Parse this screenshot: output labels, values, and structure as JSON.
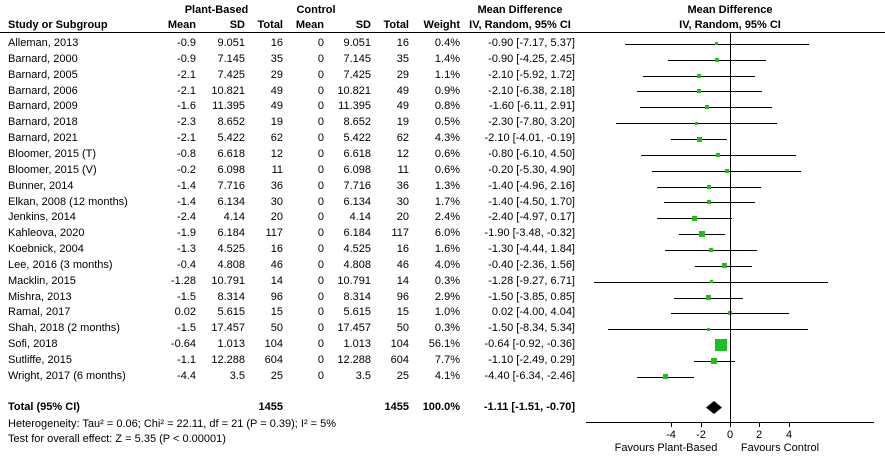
{
  "colors": {
    "marker_green": "#1fbe1f",
    "diamond_black": "#000000",
    "line_black": "#000000"
  },
  "header": {
    "study_col": "Study or Subgroup",
    "group_experimental": "Plant-Based",
    "group_control": "Control",
    "mean_label": "Mean",
    "sd_label": "SD",
    "total_label": "Total",
    "weight_label": "Weight",
    "effect_title": "Mean Difference",
    "effect_subtitle": "IV, Random, 95% CI"
  },
  "chart_data": {
    "type": "scatter",
    "subtype": "forest_plot",
    "title": "Mean Difference — IV, Random, 95% CI",
    "effect_measure": "Mean Difference",
    "method": "IV, Random, 95% CI",
    "xlim": [
      -10,
      10
    ],
    "x_ticks": [
      "-4",
      "-2",
      "0",
      "2",
      "4"
    ],
    "x_tick_values": [
      -4,
      -2,
      0,
      2,
      4
    ],
    "favours_left": "Favours Plant-Based",
    "favours_right": "Favours Control",
    "studies": [
      {
        "name": "Alleman, 2013",
        "m1": "-0.9",
        "sd1": "9.051",
        "t1": "16",
        "m2": "0",
        "sd2": "9.051",
        "t2": "16",
        "w": "0.4%",
        "ci": "-0.90 [-7.17, 5.37]",
        "md": -0.9,
        "lo": -7.17,
        "hi": 5.37
      },
      {
        "name": "Barnard, 2000",
        "m1": "-0.9",
        "sd1": "7.145",
        "t1": "35",
        "m2": "0",
        "sd2": "7.145",
        "t2": "35",
        "w": "1.4%",
        "ci": "-0.90 [-4.25, 2.45]",
        "md": -0.9,
        "lo": -4.25,
        "hi": 2.45
      },
      {
        "name": "Barnard, 2005",
        "m1": "-2.1",
        "sd1": "7.425",
        "t1": "29",
        "m2": "0",
        "sd2": "7.425",
        "t2": "29",
        "w": "1.1%",
        "ci": "-2.10 [-5.92, 1.72]",
        "md": -2.1,
        "lo": -5.92,
        "hi": 1.72
      },
      {
        "name": "Barnard, 2006",
        "m1": "-2.1",
        "sd1": "10.821",
        "t1": "49",
        "m2": "0",
        "sd2": "10.821",
        "t2": "49",
        "w": "0.9%",
        "ci": "-2.10 [-6.38, 2.18]",
        "md": -2.1,
        "lo": -6.38,
        "hi": 2.18
      },
      {
        "name": "Barnard, 2009",
        "m1": "-1.6",
        "sd1": "11.395",
        "t1": "49",
        "m2": "0",
        "sd2": "11.395",
        "t2": "49",
        "w": "0.8%",
        "ci": "-1.60 [-6.11, 2.91]",
        "md": -1.6,
        "lo": -6.11,
        "hi": 2.91
      },
      {
        "name": "Barnard, 2018",
        "m1": "-2.3",
        "sd1": "8.652",
        "t1": "19",
        "m2": "0",
        "sd2": "8.652",
        "t2": "19",
        "w": "0.5%",
        "ci": "-2.30 [-7.80, 3.20]",
        "md": -2.3,
        "lo": -7.8,
        "hi": 3.2
      },
      {
        "name": "Barnard, 2021",
        "m1": "-2.1",
        "sd1": "5.422",
        "t1": "62",
        "m2": "0",
        "sd2": "5.422",
        "t2": "62",
        "w": "4.3%",
        "ci": "-2.10 [-4.01, -0.19]",
        "md": -2.1,
        "lo": -4.01,
        "hi": -0.19
      },
      {
        "name": "Bloomer, 2015 (T)",
        "m1": "-0.8",
        "sd1": "6.618",
        "t1": "12",
        "m2": "0",
        "sd2": "6.618",
        "t2": "12",
        "w": "0.6%",
        "ci": "-0.80 [-6.10, 4.50]",
        "md": -0.8,
        "lo": -6.1,
        "hi": 4.5
      },
      {
        "name": "Bloomer, 2015 (V)",
        "m1": "-0.2",
        "sd1": "6.098",
        "t1": "11",
        "m2": "0",
        "sd2": "6.098",
        "t2": "11",
        "w": "0.6%",
        "ci": "-0.20 [-5.30, 4.90]",
        "md": -0.2,
        "lo": -5.3,
        "hi": 4.9
      },
      {
        "name": "Bunner, 2014",
        "m1": "-1.4",
        "sd1": "7.716",
        "t1": "36",
        "m2": "0",
        "sd2": "7.716",
        "t2": "36",
        "w": "1.3%",
        "ci": "-1.40 [-4.96, 2.16]",
        "md": -1.4,
        "lo": -4.96,
        "hi": 2.16
      },
      {
        "name": "Elkan, 2008 (12 months)",
        "m1": "-1.4",
        "sd1": "6.134",
        "t1": "30",
        "m2": "0",
        "sd2": "6.134",
        "t2": "30",
        "w": "1.7%",
        "ci": "-1.40 [-4.50, 1.70]",
        "md": -1.4,
        "lo": -4.5,
        "hi": 1.7
      },
      {
        "name": "Jenkins, 2014",
        "m1": "-2.4",
        "sd1": "4.14",
        "t1": "20",
        "m2": "0",
        "sd2": "4.14",
        "t2": "20",
        "w": "2.4%",
        "ci": "-2.40 [-4.97, 0.17]",
        "md": -2.4,
        "lo": -4.97,
        "hi": 0.17
      },
      {
        "name": "Kahleova, 2020",
        "m1": "-1.9",
        "sd1": "6.184",
        "t1": "117",
        "m2": "0",
        "sd2": "6.184",
        "t2": "117",
        "w": "6.0%",
        "ci": "-1.90 [-3.48, -0.32]",
        "md": -1.9,
        "lo": -3.48,
        "hi": -0.32
      },
      {
        "name": "Koebnick, 2004",
        "m1": "-1.3",
        "sd1": "4.525",
        "t1": "16",
        "m2": "0",
        "sd2": "4.525",
        "t2": "16",
        "w": "1.6%",
        "ci": "-1.30 [-4.44, 1.84]",
        "md": -1.3,
        "lo": -4.44,
        "hi": 1.84
      },
      {
        "name": "Lee, 2016 (3 months)",
        "m1": "-0.4",
        "sd1": "4.808",
        "t1": "46",
        "m2": "0",
        "sd2": "4.808",
        "t2": "46",
        "w": "4.0%",
        "ci": "-0.40 [-2.36, 1.56]",
        "md": -0.4,
        "lo": -2.36,
        "hi": 1.56
      },
      {
        "name": "Macklin, 2015",
        "m1": "-1.28",
        "sd1": "10.791",
        "t1": "14",
        "m2": "0",
        "sd2": "10.791",
        "t2": "14",
        "w": "0.3%",
        "ci": "-1.28 [-9.27, 6.71]",
        "md": -1.28,
        "lo": -9.27,
        "hi": 6.71
      },
      {
        "name": "Mishra, 2013",
        "m1": "-1.5",
        "sd1": "8.314",
        "t1": "96",
        "m2": "0",
        "sd2": "8.314",
        "t2": "96",
        "w": "2.9%",
        "ci": "-1.50 [-3.85, 0.85]",
        "md": -1.5,
        "lo": -3.85,
        "hi": 0.85
      },
      {
        "name": "Ramal, 2017",
        "m1": "0.02",
        "sd1": "5.615",
        "t1": "15",
        "m2": "0",
        "sd2": "5.615",
        "t2": "15",
        "w": "1.0%",
        "ci": "0.02 [-4.00, 4.04]",
        "md": 0.02,
        "lo": -4.0,
        "hi": 4.04
      },
      {
        "name": "Shah, 2018 (2 months)",
        "m1": "-1.5",
        "sd1": "17.457",
        "t1": "50",
        "m2": "0",
        "sd2": "17.457",
        "t2": "50",
        "w": "0.3%",
        "ci": "-1.50 [-8.34, 5.34]",
        "md": -1.5,
        "lo": -8.34,
        "hi": 5.34
      },
      {
        "name": "Sofi, 2018",
        "m1": "-0.64",
        "sd1": "1.013",
        "t1": "104",
        "m2": "0",
        "sd2": "1.013",
        "t2": "104",
        "w": "56.1%",
        "ci": "-0.64 [-0.92, -0.36]",
        "md": -0.64,
        "lo": -0.92,
        "hi": -0.36
      },
      {
        "name": "Sutliffe, 2015",
        "m1": "-1.1",
        "sd1": "12.288",
        "t1": "604",
        "m2": "0",
        "sd2": "12.288",
        "t2": "604",
        "w": "7.7%",
        "ci": "-1.10 [-2.49, 0.29]",
        "md": -1.1,
        "lo": -2.49,
        "hi": 0.29
      },
      {
        "name": "Wright, 2017 (6 months)",
        "m1": "-4.4",
        "sd1": "3.5",
        "t1": "25",
        "m2": "0",
        "sd2": "3.5",
        "t2": "25",
        "w": "4.1%",
        "ci": "-4.40 [-6.34, -2.46]",
        "md": -4.4,
        "lo": -6.34,
        "hi": -2.46
      }
    ],
    "total": {
      "label": "Total (95% CI)",
      "t1": "1455",
      "t2": "1455",
      "w": "100.0%",
      "ci": "-1.11 [-1.51, -0.70]",
      "md": -1.11,
      "lo": -1.51,
      "hi": -0.7
    },
    "heterogeneity": "Heterogeneity: Tau² = 0.06; Chi² = 22.11, df = 21 (P = 0.39); I² = 5%",
    "overall_effect": "Test for overall effect: Z = 5.35 (P < 0.00001)"
  }
}
